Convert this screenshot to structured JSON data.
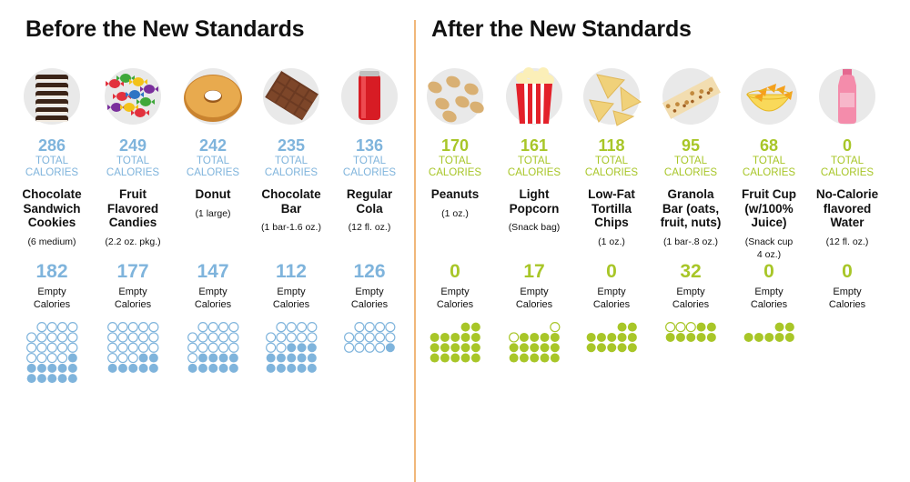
{
  "before_title": "Before the New Standards",
  "after_title": "After the New Standards",
  "colors": {
    "before": "#7fb4dc",
    "after": "#a8c628",
    "divider": "#f0b77a"
  },
  "total_label": [
    "TOTAL",
    "CALORIES"
  ],
  "empty_label": [
    "Empty",
    "Calories"
  ],
  "items": [
    {
      "group": "before",
      "icon": "sandwich-cookies-icon",
      "total": "286",
      "empty": "182",
      "name": [
        "Chocolate",
        "Sandwich",
        "Cookies"
      ],
      "serving": [
        "(6 medium)"
      ]
    },
    {
      "group": "before",
      "icon": "fruit-candies-icon",
      "total": "249",
      "empty": "177",
      "name": [
        "Fruit",
        "Flavored",
        "Candies"
      ],
      "serving": [
        "(2.2 oz. pkg.)"
      ]
    },
    {
      "group": "before",
      "icon": "donut-icon",
      "total": "242",
      "empty": "147",
      "name": [
        "Donut"
      ],
      "serving": [
        "(1 large)"
      ]
    },
    {
      "group": "before",
      "icon": "chocolate-bar-icon",
      "total": "235",
      "empty": "112",
      "name": [
        "Chocolate",
        "Bar"
      ],
      "serving": [
        "(1 bar-1.6 oz.)"
      ]
    },
    {
      "group": "before",
      "icon": "cola-can-icon",
      "total": "136",
      "empty": "126",
      "name": [
        "Regular",
        "Cola"
      ],
      "serving": [
        "(12 fl. oz.)"
      ]
    },
    {
      "group": "after",
      "icon": "peanuts-icon",
      "total": "170",
      "empty": "0",
      "name": [
        "Peanuts"
      ],
      "serving": [
        "(1 oz.)"
      ]
    },
    {
      "group": "after",
      "icon": "popcorn-icon",
      "total": "161",
      "empty": "17",
      "name": [
        "Light",
        "Popcorn"
      ],
      "serving": [
        "(Snack bag)"
      ]
    },
    {
      "group": "after",
      "icon": "tortilla-chips-icon",
      "total": "118",
      "empty": "0",
      "name": [
        "Low-Fat",
        "Tortilla",
        "Chips"
      ],
      "serving": [
        "(1 oz.)"
      ]
    },
    {
      "group": "after",
      "icon": "granola-bar-icon",
      "total": "95",
      "empty": "32",
      "name": [
        "Granola",
        "Bar (oats,",
        "fruit, nuts)"
      ],
      "serving": [
        "(1 bar-.8 oz.)"
      ]
    },
    {
      "group": "after",
      "icon": "fruit-cup-icon",
      "total": "68",
      "empty": "0",
      "name": [
        "Fruit Cup",
        "(w/100%",
        "Juice)"
      ],
      "serving": [
        "(Snack cup",
        "4 oz.)"
      ]
    },
    {
      "group": "after",
      "icon": "water-bottle-icon",
      "total": "0",
      "empty": "0",
      "name": [
        "No-Calorie",
        "flavored",
        "Water"
      ],
      "serving": [
        "(12 fl. oz.)"
      ]
    }
  ]
}
